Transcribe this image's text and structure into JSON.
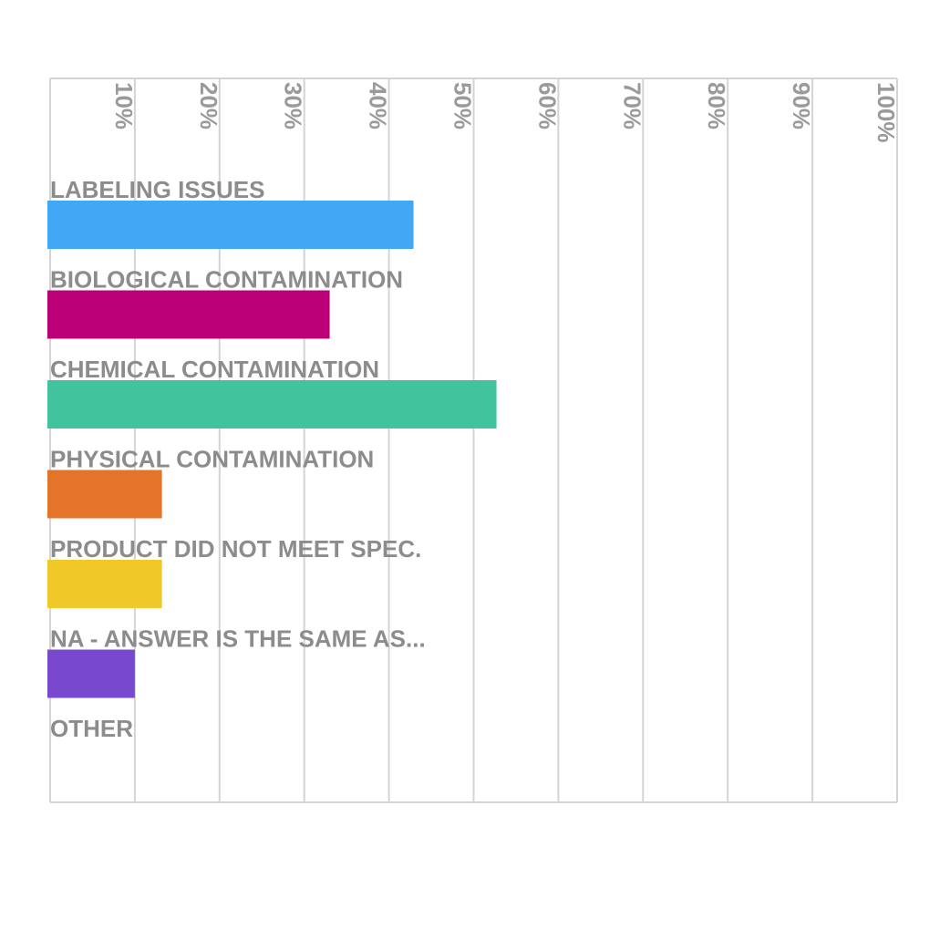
{
  "chart_data": {
    "type": "bar",
    "orientation": "horizontal",
    "categories": [
      "LABELING ISSUES",
      "BIOLOGICAL CONTAMINATION",
      "CHEMICAL CONTAMINATION",
      "PHYSICAL CONTAMINATION",
      "PRODUCT DID NOT MEET SPEC.",
      "NA - ANSWER IS THE SAME AS...",
      "OTHER"
    ],
    "values": [
      42.9,
      33.0,
      52.7,
      13.2,
      13.2,
      10.0,
      0
    ],
    "colors": [
      "#42a7f5",
      "#bb0077",
      "#41c39d",
      "#e5742b",
      "#f0c928",
      "#7848cf",
      "#cccccc"
    ],
    "xlim": [
      0,
      100
    ],
    "x_ticks": [
      "10%",
      "20%",
      "30%",
      "40%",
      "50%",
      "60%",
      "70%",
      "80%",
      "90%",
      "100%"
    ],
    "tick_values": [
      10,
      20,
      30,
      40,
      50,
      60,
      70,
      80,
      90,
      100
    ],
    "x_axis_position": "top",
    "grid": true,
    "legend": "none"
  }
}
